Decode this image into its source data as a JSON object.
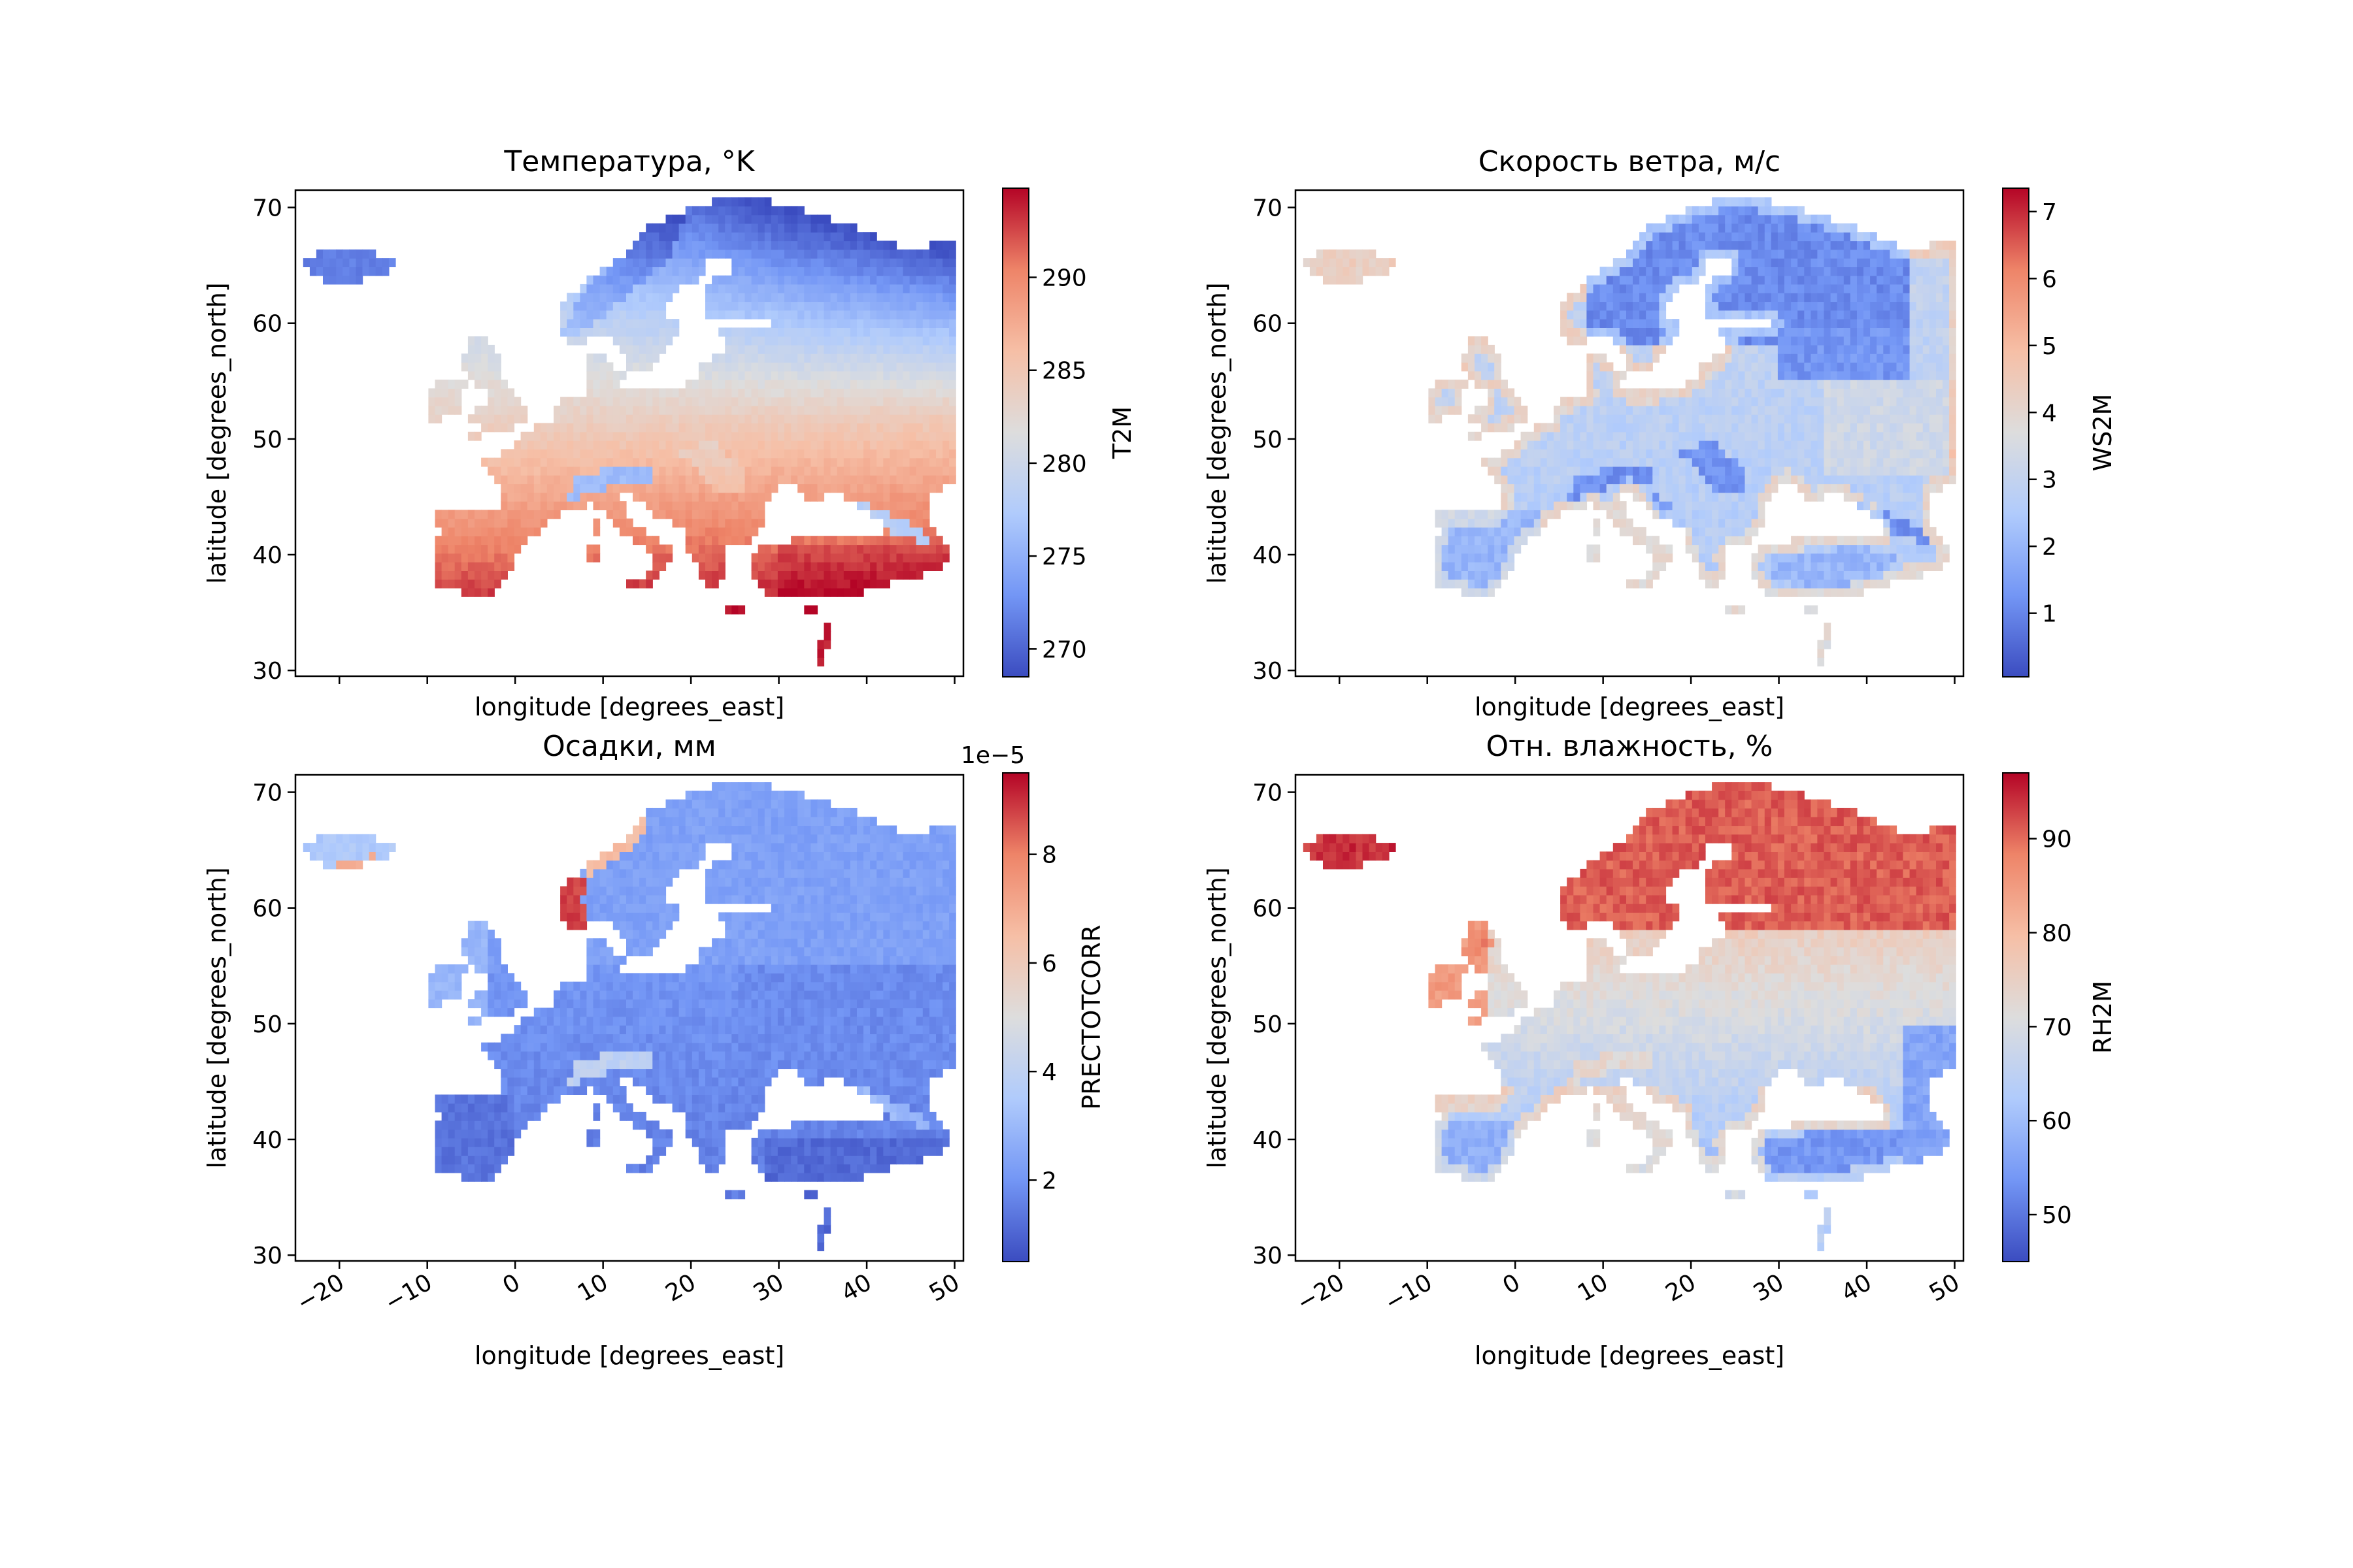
{
  "figure": {
    "background": "#ffffff",
    "colormap": "coolwarm",
    "colormap_stops": [
      "#3b4cc0",
      "#7396f5",
      "#b0cbfc",
      "#dddddd",
      "#f6bfa6",
      "#ee8468",
      "#b40426"
    ]
  },
  "chart_data": [
    {
      "type": "heatmap",
      "panel": "top-left",
      "title": "Температура, °K",
      "xlabel": "longitude [degrees_east]",
      "ylabel": "latitude [degrees_north]",
      "xlim": [
        -25,
        51
      ],
      "ylim": [
        29.5,
        71.5
      ],
      "xticks": [
        -20,
        -10,
        0,
        10,
        20,
        30,
        40,
        50
      ],
      "xtick_labels_visible": false,
      "yticks": [
        30,
        40,
        50,
        60,
        70
      ],
      "colorbar": {
        "label": "T2M",
        "vmin": 268.5,
        "vmax": 294.8,
        "ticks": [
          270,
          275,
          280,
          285,
          290
        ],
        "offset_text": ""
      },
      "field": "temperature"
    },
    {
      "type": "heatmap",
      "panel": "top-right",
      "title": "Скорость ветра, м/с",
      "xlabel": "longitude [degrees_east]",
      "ylabel": "latitude [degrees_north]",
      "xlim": [
        -25,
        51
      ],
      "ylim": [
        29.5,
        71.5
      ],
      "xticks": [
        -20,
        -10,
        0,
        10,
        20,
        30,
        40,
        50
      ],
      "xtick_labels_visible": false,
      "yticks": [
        30,
        40,
        50,
        60,
        70
      ],
      "colorbar": {
        "label": "WS2M",
        "vmin": 0.05,
        "vmax": 7.35,
        "ticks": [
          1,
          2,
          3,
          4,
          5,
          6,
          7
        ],
        "offset_text": ""
      },
      "field": "wind"
    },
    {
      "type": "heatmap",
      "panel": "bottom-left",
      "title": "Осадки, мм",
      "xlabel": "longitude [degrees_east]",
      "ylabel": "latitude [degrees_north]",
      "xlim": [
        -25,
        51
      ],
      "ylim": [
        29.5,
        71.5
      ],
      "xticks": [
        -20,
        -10,
        0,
        10,
        20,
        30,
        40,
        50
      ],
      "xtick_labels_visible": true,
      "yticks": [
        30,
        40,
        50,
        60,
        70
      ],
      "colorbar": {
        "label": "PRECTOTCORR",
        "vmin": 0.5,
        "vmax": 9.5,
        "ticks": [
          2,
          4,
          6,
          8
        ],
        "offset_text": "1e−5"
      },
      "field": "precip"
    },
    {
      "type": "heatmap",
      "panel": "bottom-right",
      "title": "Отн. влажность, %",
      "xlabel": "longitude [degrees_east]",
      "ylabel": "latitude [degrees_north]",
      "xlim": [
        -25,
        51
      ],
      "ylim": [
        29.5,
        71.5
      ],
      "xticks": [
        -20,
        -10,
        0,
        10,
        20,
        30,
        40,
        50
      ],
      "xtick_labels_visible": true,
      "yticks": [
        30,
        40,
        50,
        60,
        70
      ],
      "colorbar": {
        "label": "RH2M",
        "vmin": 45,
        "vmax": 97,
        "ticks": [
          50,
          60,
          70,
          80,
          90
        ],
        "offset_text": ""
      },
      "field": "humidity"
    }
  ]
}
